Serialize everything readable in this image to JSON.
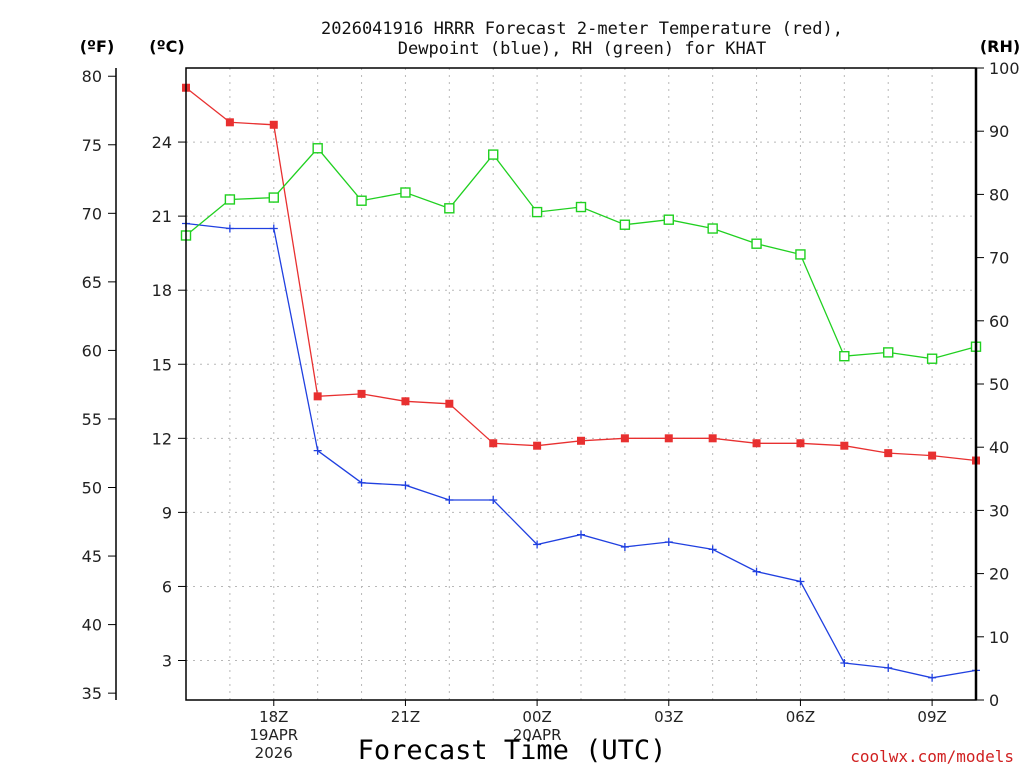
{
  "chart_data": {
    "type": "line",
    "title": [
      "2026041916 HRRR Forecast 2-meter Temperature (red),",
      "Dewpoint (blue), RH (green) for KHAT"
    ],
    "unit_labels": {
      "fahrenheit": "(ºF)",
      "celsius": "(ºC)",
      "rh": "(RH)"
    },
    "xlabel": "Forecast Time (UTC)",
    "credit": "coolwx.com/models",
    "x_hours": [
      16,
      17,
      18,
      19,
      20,
      21,
      22,
      23,
      24,
      25,
      26,
      27,
      28,
      29,
      30,
      31,
      32,
      33,
      34
    ],
    "xlim": [
      16,
      34
    ],
    "x_ticks": [
      {
        "hour": 18,
        "lines": [
          "18Z",
          "19APR",
          "2026"
        ]
      },
      {
        "hour": 21,
        "lines": [
          "21Z"
        ]
      },
      {
        "hour": 24,
        "lines": [
          "00Z",
          "20APR"
        ]
      },
      {
        "hour": 27,
        "lines": [
          "03Z"
        ]
      },
      {
        "hour": 30,
        "lines": [
          "06Z"
        ]
      },
      {
        "hour": 33,
        "lines": [
          "09Z"
        ]
      }
    ],
    "celsius_axis": {
      "range": [
        1.4,
        27
      ],
      "ticks": [
        3,
        6,
        9,
        12,
        15,
        18,
        21,
        24
      ]
    },
    "fahrenheit_axis": {
      "range": [
        34.5,
        80.6
      ],
      "ticks": [
        35,
        40,
        45,
        50,
        55,
        60,
        65,
        70,
        75,
        80
      ]
    },
    "rh_axis": {
      "range": [
        0,
        100
      ],
      "ticks": [
        0,
        10,
        20,
        30,
        40,
        50,
        60,
        70,
        80,
        90,
        100
      ]
    },
    "series": [
      {
        "name": "Temperature",
        "axis": "celsius",
        "color": "#e83030",
        "marker": "filled-square",
        "values": [
          26.2,
          24.8,
          24.7,
          13.7,
          13.8,
          13.5,
          13.4,
          11.8,
          11.7,
          11.9,
          12.0,
          12.0,
          12.0,
          11.8,
          11.8,
          11.7,
          11.4,
          11.3,
          11.1
        ]
      },
      {
        "name": "Dewpoint",
        "axis": "celsius",
        "color": "#2040e0",
        "marker": "plus",
        "values": [
          20.7,
          20.5,
          20.5,
          11.5,
          10.2,
          10.1,
          9.5,
          9.5,
          7.7,
          8.1,
          7.6,
          7.8,
          7.5,
          6.6,
          6.2,
          2.9,
          2.7,
          2.3,
          2.6
        ]
      },
      {
        "name": "RH",
        "axis": "rh",
        "color": "#20d020",
        "marker": "open-square",
        "values": [
          73.5,
          79.2,
          79.5,
          87.3,
          79.0,
          80.3,
          77.8,
          86.3,
          77.2,
          78.0,
          75.2,
          76.0,
          74.6,
          72.2,
          70.5,
          54.4,
          55.0,
          54.0,
          55.9
        ]
      }
    ]
  }
}
